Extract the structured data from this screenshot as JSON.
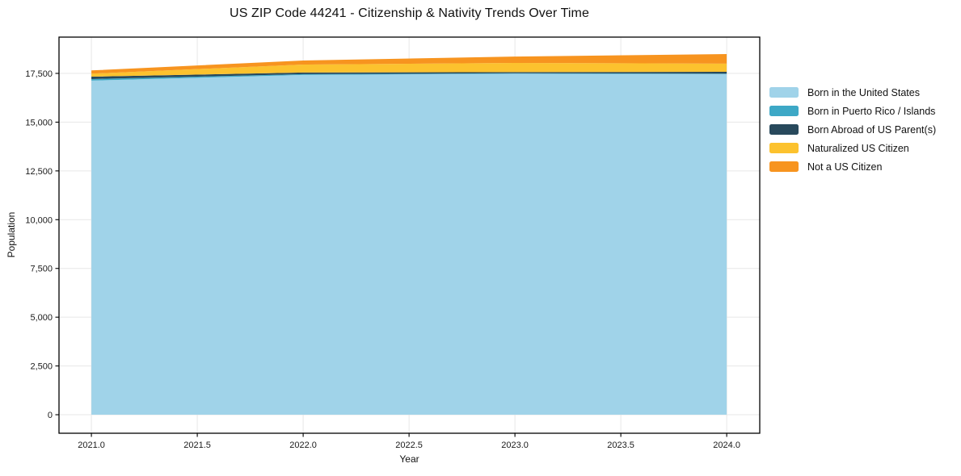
{
  "chart_data": {
    "type": "area",
    "stacked": true,
    "title": "US ZIP Code 44241 - Citizenship & Nativity Trends Over Time",
    "xlabel": "Year",
    "ylabel": "Population",
    "x": [
      2021,
      2022,
      2023,
      2024
    ],
    "series": [
      {
        "name": "Born in the United States",
        "color": "#a0d3e9",
        "values": [
          17130,
          17420,
          17480,
          17460
        ]
      },
      {
        "name": "Born in Puerto Rico / Islands",
        "color": "#3da8c6",
        "values": [
          80,
          40,
          25,
          25
        ]
      },
      {
        "name": "Born Abroad of US Parent(s)",
        "color": "#28495c",
        "values": [
          125,
          85,
          60,
          95
        ]
      },
      {
        "name": "Naturalized US Citizen",
        "color": "#fcc22e",
        "values": [
          150,
          410,
          470,
          420
        ]
      },
      {
        "name": "Not a US Citizen",
        "color": "#f7941f",
        "values": [
          165,
          205,
          330,
          490
        ]
      }
    ],
    "x_ticks": [
      {
        "v": 2021.0,
        "label": "2021.0"
      },
      {
        "v": 2021.5,
        "label": "2021.5"
      },
      {
        "v": 2022.0,
        "label": "2022.0"
      },
      {
        "v": 2022.5,
        "label": "2022.5"
      },
      {
        "v": 2023.0,
        "label": "2023.0"
      },
      {
        "v": 2023.5,
        "label": "2023.5"
      },
      {
        "v": 2024.0,
        "label": "2024.0"
      }
    ],
    "y_ticks": [
      {
        "v": 0,
        "label": "0"
      },
      {
        "v": 2500,
        "label": "2,500"
      },
      {
        "v": 5000,
        "label": "5,000"
      },
      {
        "v": 7500,
        "label": "7,500"
      },
      {
        "v": 10000,
        "label": "10,000"
      },
      {
        "v": 12500,
        "label": "12,500"
      },
      {
        "v": 15000,
        "label": "15,000"
      },
      {
        "v": 17500,
        "label": "17,500"
      }
    ],
    "xlim": [
      2020.847,
      2024.156
    ],
    "ylim": [
      -950,
      19360
    ],
    "grid": true,
    "legend_position": "right-outside"
  },
  "colors": {
    "background": "#ffffff",
    "grid": "#e7e7e7",
    "spine": "#000000",
    "tick_text": "#1a1a1a"
  }
}
